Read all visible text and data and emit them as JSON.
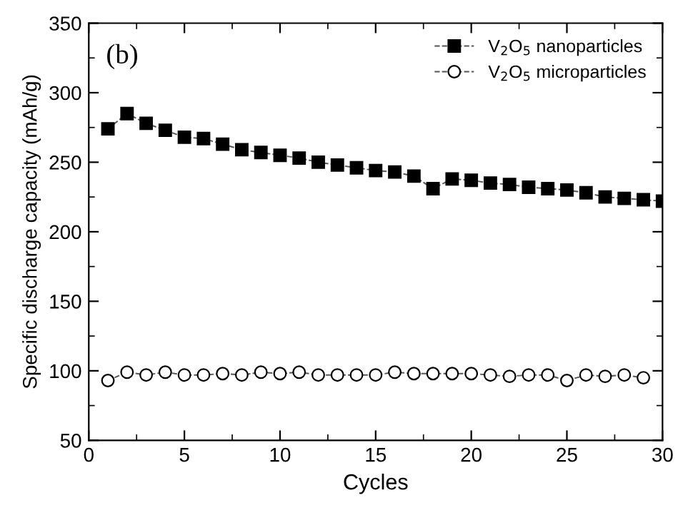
{
  "chart_data": {
    "type": "line",
    "xlabel": "Cycles",
    "ylabel": "Specific discharge capacity (mAh/g)",
    "annotations": [
      "(b)"
    ],
    "xlim": [
      0,
      30
    ],
    "xticks": [
      0,
      5,
      10,
      15,
      20,
      25,
      30
    ],
    "ylim": [
      50,
      350
    ],
    "yticks": [
      50,
      100,
      150,
      200,
      250,
      300,
      350
    ],
    "grid": false,
    "legend": "top right",
    "line_style": "dashed",
    "series": [
      {
        "name": "V$_{2}$O$_{5}$ nanoparticles",
        "color": "#000000",
        "marker": "square",
        "x": [
          1,
          2,
          3,
          4,
          5,
          6,
          7,
          8,
          9,
          10,
          11,
          12,
          13,
          14,
          15,
          16,
          17,
          18,
          19,
          20,
          21,
          22,
          23,
          24,
          25,
          26,
          27,
          28,
          29,
          30
        ],
        "values": [
          274,
          285,
          278,
          273,
          268,
          267,
          263,
          259,
          257,
          255,
          253,
          250,
          248,
          246,
          244,
          243,
          240,
          231,
          238,
          237,
          235,
          234,
          232,
          231,
          230,
          228,
          225,
          224,
          223,
          222
        ]
      },
      {
        "name": "V$_{2}$O$_{5}$ microparticles",
        "color": "#000000",
        "marker": "circle",
        "x": [
          1,
          2,
          3,
          4,
          5,
          6,
          7,
          8,
          9,
          10,
          11,
          12,
          13,
          14,
          15,
          16,
          17,
          18,
          19,
          20,
          21,
          22,
          23,
          24,
          25,
          26,
          27,
          28,
          29
        ],
        "values": [
          93,
          99,
          97,
          99,
          97,
          97,
          98,
          97,
          99,
          98,
          99,
          97,
          97,
          97,
          97,
          99,
          98,
          98,
          98,
          98,
          97,
          96,
          97,
          97,
          93,
          97,
          96,
          97,
          95
        ]
      }
    ]
  }
}
